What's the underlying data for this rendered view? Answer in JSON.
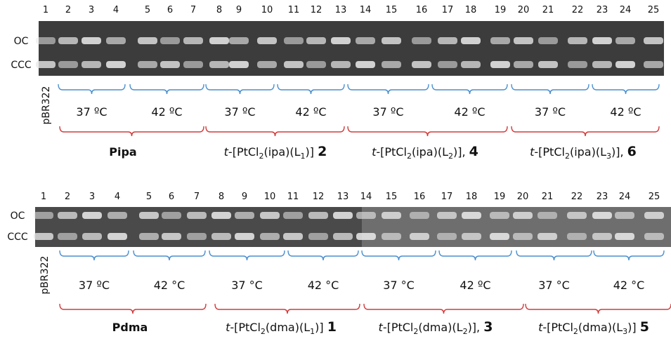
{
  "panels": [
    {
      "lanes": [
        1,
        2,
        3,
        4,
        5,
        6,
        7,
        8,
        9,
        10,
        11,
        12,
        13,
        14,
        15,
        16,
        17,
        18,
        19,
        20,
        21,
        22,
        23,
        24,
        25
      ],
      "bands": [
        "OC",
        "CCC"
      ],
      "plasmid": "pBR322",
      "temperatures": [
        "37 ºC",
        "42 ºC",
        "37 ºC",
        "42 ºC",
        "37 ºC",
        "42 ºC",
        "37 ºC",
        "42 ºC"
      ],
      "compounds": [
        {
          "segments": [
            {
              "text": "Pipa",
              "bold": true
            }
          ]
        },
        {
          "segments": [
            {
              "text": "t",
              "italic": true
            },
            {
              "text": "-[PtCl"
            },
            {
              "text": "2",
              "sub": true
            },
            {
              "text": "(ipa)(L"
            },
            {
              "text": "1",
              "sub": true
            },
            {
              "text": ")] "
            },
            {
              "text": "2",
              "bold": true
            }
          ]
        },
        {
          "segments": [
            {
              "text": "t",
              "italic": true
            },
            {
              "text": "-[PtCl"
            },
            {
              "text": "2",
              "sub": true
            },
            {
              "text": "(ipa)(L"
            },
            {
              "text": "2",
              "sub": true
            },
            {
              "text": ")], "
            },
            {
              "text": "4",
              "bold": true
            }
          ]
        },
        {
          "segments": [
            {
              "text": "t",
              "italic": true
            },
            {
              "text": "-[PtCl"
            },
            {
              "text": "2",
              "sub": true
            },
            {
              "text": "(ipa)(L"
            },
            {
              "text": "3",
              "sub": true
            },
            {
              "text": ")],  "
            },
            {
              "text": "6",
              "bold": true
            }
          ]
        }
      ]
    },
    {
      "lanes": [
        1,
        2,
        3,
        4,
        5,
        6,
        7,
        8,
        9,
        10,
        11,
        12,
        13,
        14,
        15,
        16,
        17,
        18,
        19,
        20,
        21,
        22,
        23,
        24,
        25
      ],
      "bands": [
        "OC",
        "CCC"
      ],
      "plasmid": "pBR322",
      "temperatures": [
        "37 ºC",
        "42 °C",
        "37 °C",
        "42 °C",
        "37 °C",
        "42 ºC",
        "37 °C",
        "42 °C"
      ],
      "compounds": [
        {
          "segments": [
            {
              "text": "Pdma",
              "bold": true
            }
          ]
        },
        {
          "segments": [
            {
              "text": "t",
              "italic": true
            },
            {
              "text": "-[PtCl"
            },
            {
              "text": "2",
              "sub": true
            },
            {
              "text": "(dma)(L"
            },
            {
              "text": "1",
              "sub": true
            },
            {
              "text": ")] "
            },
            {
              "text": "1",
              "bold": true
            }
          ]
        },
        {
          "segments": [
            {
              "text": "t",
              "italic": true
            },
            {
              "text": "-[PtCl"
            },
            {
              "text": "2",
              "sub": true
            },
            {
              "text": "(dma)(L"
            },
            {
              "text": "2",
              "sub": true
            },
            {
              "text": ")], "
            },
            {
              "text": "3",
              "bold": true
            }
          ]
        },
        {
          "segments": [
            {
              "text": "t",
              "italic": true
            },
            {
              "text": "-[PtCl"
            },
            {
              "text": "2",
              "sub": true
            },
            {
              "text": "(dma)(L"
            },
            {
              "text": "3",
              "sub": true
            },
            {
              "text": ")] "
            },
            {
              "text": "5",
              "bold": true
            }
          ]
        }
      ]
    }
  ]
}
